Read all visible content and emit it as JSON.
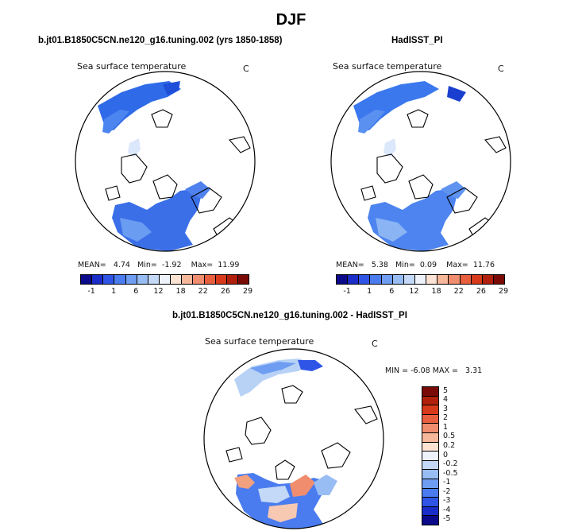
{
  "page": {
    "title": "DJF"
  },
  "panels": [
    {
      "title": "b.jt01.B1850C5CN.ne120_g16.tuning.002 (yrs 1850-1858)",
      "variable": "Sea surface temperature",
      "units": "C",
      "stats": {
        "mean_label": "MEAN=",
        "mean": "4.74",
        "min_label": "Min=",
        "min": "-1.92",
        "max_label": "Max=",
        "max": "11.99"
      }
    },
    {
      "title": "HadISST_PI",
      "variable": "Sea surface temperature",
      "units": "C",
      "stats": {
        "mean_label": "MEAN=",
        "mean": "5.38",
        "min_label": "Min=",
        "min": "0.09",
        "max_label": "Max=",
        "max": "11.76"
      }
    }
  ],
  "diff_panel": {
    "title": "b.jt01.B1850C5CN.ne120_g16.tuning.002 - HadISST_PI",
    "variable": "Sea surface temperature",
    "units": "C",
    "stats": {
      "min_label": "MIN =",
      "min": "-6.08",
      "max_label": "MAX =",
      "max": "3.31"
    }
  },
  "colorbar_main": {
    "colors": [
      "#0a0a8a",
      "#1a2dc8",
      "#2f55e6",
      "#4a7cf0",
      "#6e9df2",
      "#98bdf4",
      "#c4d9f7",
      "#eef3fb",
      "#fde3d3",
      "#f7b79b",
      "#f08d6e",
      "#e85f3e",
      "#d63a1a",
      "#b0200a",
      "#7a0a05"
    ],
    "tick_labels": [
      "-1",
      "1",
      "6",
      "12",
      "18",
      "22",
      "26",
      "29"
    ]
  },
  "colorbar_diff": {
    "colors": [
      "#0a0a8a",
      "#1a2dc8",
      "#2f55e6",
      "#4a7cf0",
      "#6e9df2",
      "#98bdf4",
      "#c4d9f7",
      "#eef3fb",
      "#fde3d3",
      "#f7b79b",
      "#f08d6e",
      "#e85f3e",
      "#d63a1a",
      "#b0200a",
      "#7a0a05"
    ],
    "tick_labels": [
      "5",
      "4",
      "3",
      "2",
      "1",
      "0.5",
      "0.2",
      "0",
      "-0.2",
      "-0.5",
      "-1",
      "-2",
      "-3",
      "-4",
      "-5"
    ]
  }
}
